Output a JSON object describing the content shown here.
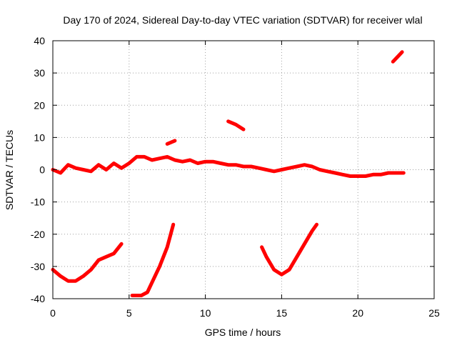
{
  "chart_data": {
    "type": "line",
    "title": "Day 170 of 2024, Sidereal Day-to-day VTEC variation (SDTVAR) for receiver wlal",
    "xlabel": "GPS time / hours",
    "ylabel": "SDTVAR / TECUs",
    "xlim": [
      0,
      25
    ],
    "ylim": [
      -40,
      40
    ],
    "xticks": [
      0,
      5,
      10,
      15,
      20,
      25
    ],
    "yticks": [
      -40,
      -30,
      -20,
      -10,
      0,
      10,
      20,
      30,
      40
    ],
    "xtick_labels": [
      "0",
      "5",
      "10",
      "15",
      "20",
      "25"
    ],
    "ytick_labels": [
      "-40",
      "-30",
      "-20",
      "-10",
      "0",
      "10",
      "20",
      "30",
      "40"
    ],
    "grid": true,
    "series_color": "#ff0000",
    "series": [
      {
        "name": "main-band",
        "points": [
          [
            0,
            0
          ],
          [
            0.5,
            -1
          ],
          [
            1,
            1.5
          ],
          [
            1.5,
            0.5
          ],
          [
            2,
            0
          ],
          [
            2.5,
            -0.5
          ],
          [
            3,
            1.5
          ],
          [
            3.5,
            0
          ],
          [
            4,
            2
          ],
          [
            4.5,
            0.5
          ],
          [
            5,
            2
          ],
          [
            5.5,
            4
          ],
          [
            6,
            4
          ],
          [
            6.5,
            3
          ],
          [
            7,
            3.5
          ],
          [
            7.5,
            4
          ],
          [
            8,
            3
          ],
          [
            8.5,
            2.5
          ],
          [
            9,
            3
          ],
          [
            9.5,
            2
          ],
          [
            10,
            2.5
          ],
          [
            10.5,
            2.5
          ],
          [
            11,
            2
          ],
          [
            11.5,
            1.5
          ],
          [
            12,
            1.5
          ],
          [
            12.5,
            1
          ],
          [
            13,
            1
          ],
          [
            13.5,
            0.5
          ],
          [
            14,
            0
          ],
          [
            14.5,
            -0.5
          ],
          [
            15,
            0
          ],
          [
            15.5,
            0.5
          ],
          [
            16,
            1
          ],
          [
            16.5,
            1.5
          ],
          [
            17,
            1
          ],
          [
            17.5,
            0
          ],
          [
            18,
            -0.5
          ],
          [
            18.5,
            -1
          ],
          [
            19,
            -1.5
          ],
          [
            19.5,
            -2
          ],
          [
            20,
            -2
          ],
          [
            20.5,
            -2
          ],
          [
            21,
            -1.5
          ],
          [
            21.5,
            -1.5
          ],
          [
            22,
            -1
          ],
          [
            22.5,
            -1
          ],
          [
            23,
            -1
          ]
        ]
      },
      {
        "name": "excursion-morning-low",
        "points": [
          [
            0,
            -31
          ],
          [
            0.5,
            -33
          ],
          [
            1,
            -34.5
          ],
          [
            1.5,
            -34.5
          ],
          [
            2,
            -33
          ],
          [
            2.5,
            -31
          ],
          [
            3,
            -28
          ],
          [
            3.5,
            -27
          ],
          [
            4,
            -26
          ],
          [
            4.5,
            -23
          ]
        ]
      },
      {
        "name": "excursion-dawn-rise",
        "points": [
          [
            5.2,
            -39
          ],
          [
            5.8,
            -39
          ],
          [
            6.2,
            -38
          ],
          [
            6.5,
            -35
          ],
          [
            7,
            -30
          ],
          [
            7.5,
            -24
          ],
          [
            7.9,
            -17
          ]
        ]
      },
      {
        "name": "excursion-evening-spike",
        "points": [
          [
            7.5,
            8
          ],
          [
            8,
            9
          ]
        ]
      },
      {
        "name": "excursion-afternoon-arc",
        "points": [
          [
            11.5,
            15
          ],
          [
            12,
            14
          ],
          [
            12.5,
            12.5
          ]
        ]
      },
      {
        "name": "excursion-afternoon-dip",
        "points": [
          [
            13.7,
            -24
          ],
          [
            14,
            -27
          ],
          [
            14.5,
            -31
          ],
          [
            15,
            -32.5
          ],
          [
            15.5,
            -31
          ],
          [
            16,
            -27
          ],
          [
            16.5,
            -23
          ],
          [
            17,
            -19
          ],
          [
            17.3,
            -17
          ]
        ]
      },
      {
        "name": "excursion-late-high",
        "points": [
          [
            22.3,
            33.5
          ],
          [
            22.6,
            35
          ],
          [
            22.9,
            36.5
          ]
        ]
      }
    ]
  }
}
